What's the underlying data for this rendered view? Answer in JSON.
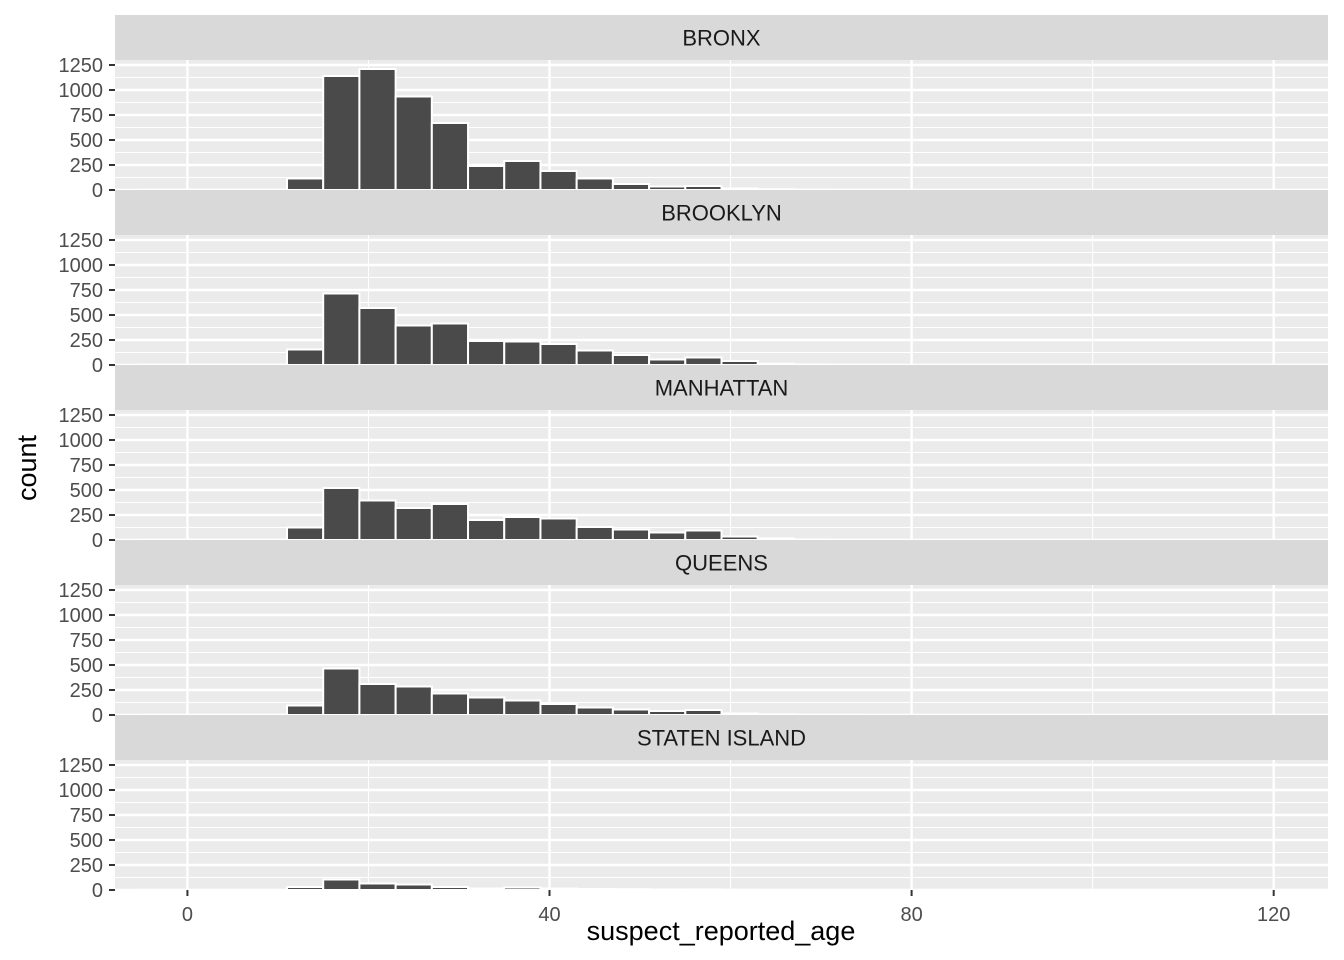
{
  "chart_data": {
    "type": "bar",
    "subtype": "faceted-histogram",
    "xlabel": "suspect_reported_age",
    "ylabel": "count",
    "xlim": [
      -8,
      126
    ],
    "ylim": [
      0,
      1300
    ],
    "x_ticks": [
      0,
      40,
      80,
      120
    ],
    "y_ticks": [
      0,
      250,
      500,
      750,
      1000,
      1250
    ],
    "binwidth": 4,
    "bin_start": -5,
    "grid": true,
    "bar_color": "#4a4a4a",
    "bar_outline": "#ffffff",
    "panel_background": "#ebebeb",
    "strip_background": "#d9d9d9",
    "facets": [
      {
        "name": "BRONX",
        "values": [
          3,
          3,
          3,
          3,
          115,
          1140,
          1210,
          935,
          670,
          240,
          290,
          190,
          115,
          60,
          35,
          40,
          15,
          8,
          4,
          3,
          2,
          1,
          1,
          1,
          1,
          1,
          1,
          1,
          1,
          1,
          1,
          1,
          1
        ]
      },
      {
        "name": "BROOKLYN",
        "values": [
          3,
          3,
          3,
          3,
          155,
          715,
          570,
          395,
          415,
          240,
          235,
          210,
          145,
          100,
          55,
          75,
          40,
          12,
          5,
          3,
          2,
          1,
          1,
          1,
          1,
          1,
          1,
          1,
          1,
          1,
          1,
          1,
          1
        ]
      },
      {
        "name": "MANHATTAN",
        "values": [
          3,
          3,
          3,
          3,
          125,
          520,
          395,
          320,
          360,
          200,
          230,
          215,
          130,
          105,
          75,
          95,
          35,
          15,
          5,
          3,
          2,
          1,
          1,
          1,
          1,
          1,
          1,
          1,
          1,
          1,
          1,
          1,
          1
        ]
      },
      {
        "name": "QUEENS",
        "values": [
          3,
          3,
          3,
          3,
          95,
          465,
          310,
          285,
          215,
          175,
          145,
          110,
          75,
          55,
          40,
          50,
          15,
          6,
          3,
          2,
          1,
          1,
          1,
          1,
          1,
          1,
          1,
          1,
          1,
          1,
          1,
          1,
          1
        ]
      },
      {
        "name": "STATEN ISLAND",
        "values": [
          1,
          1,
          1,
          1,
          30,
          105,
          65,
          55,
          30,
          15,
          25,
          15,
          10,
          8,
          5,
          6,
          3,
          1,
          1,
          1,
          1,
          1,
          1,
          1,
          1,
          1,
          1,
          1,
          1,
          1,
          1,
          1,
          1
        ]
      }
    ]
  }
}
